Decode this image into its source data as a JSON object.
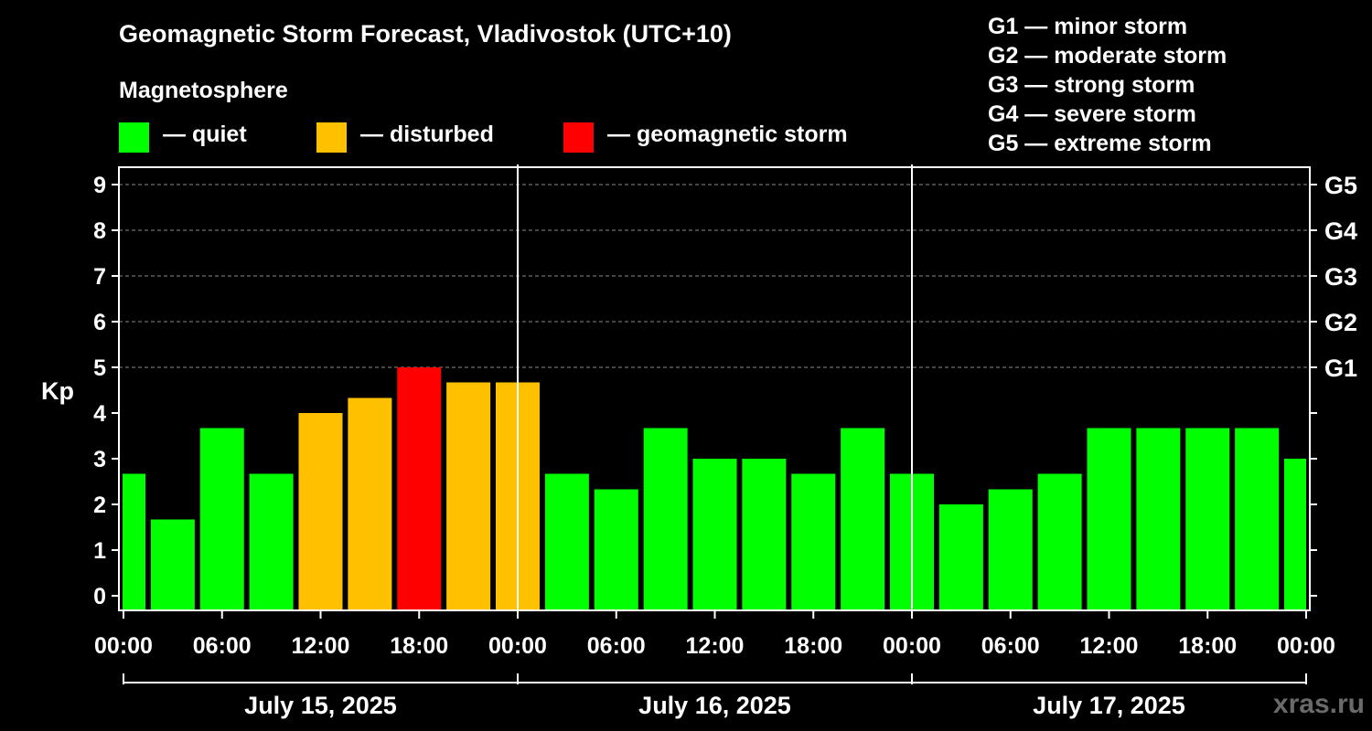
{
  "title": "Geomagnetic Storm Forecast, Vladivostok (UTC+10)",
  "subtitle": "Magnetosphere",
  "legend": [
    {
      "label": "— quiet",
      "color": "#00ff00"
    },
    {
      "label": "— disturbed",
      "color": "#ffc000"
    },
    {
      "label": "— geomagnetic storm",
      "color": "#ff0000"
    }
  ],
  "g_scale": [
    "G1 — minor storm",
    "G2 — moderate storm",
    "G3 — strong storm",
    "G4 — severe storm",
    "G5 — extreme storm"
  ],
  "watermark": "xras.ru",
  "chart_data": {
    "type": "bar",
    "ylabel": "Kp",
    "ylim": [
      0,
      9
    ],
    "yticks": [
      0,
      1,
      2,
      3,
      4,
      5,
      6,
      7,
      8,
      9
    ],
    "right_axis_labels": [
      {
        "kp": 5,
        "label": "G1"
      },
      {
        "kp": 6,
        "label": "G2"
      },
      {
        "kp": 7,
        "label": "G3"
      },
      {
        "kp": 8,
        "label": "G4"
      },
      {
        "kp": 9,
        "label": "G5"
      }
    ],
    "xtick_labels": [
      "00:00",
      "06:00",
      "12:00",
      "18:00",
      "00:00",
      "06:00",
      "12:00",
      "18:00",
      "00:00",
      "06:00",
      "12:00",
      "18:00",
      "00:00"
    ],
    "days": [
      "July 15, 2025",
      "July 16, 2025",
      "July 17, 2025"
    ],
    "interval_hours": 3,
    "start_hour": -1.5,
    "values": [
      2.67,
      1.67,
      3.67,
      2.67,
      4.0,
      4.33,
      5.0,
      4.67,
      4.67,
      2.67,
      2.33,
      3.67,
      3.0,
      3.0,
      2.67,
      3.67,
      2.67,
      2.0,
      2.33,
      2.67,
      3.67,
      3.67,
      3.67,
      3.67,
      3.0
    ],
    "colors": {
      "quiet": "#00ff00",
      "disturbed": "#ffc000",
      "storm": "#ff0000"
    },
    "thresholds": {
      "disturbed": 4,
      "storm": 5
    }
  }
}
